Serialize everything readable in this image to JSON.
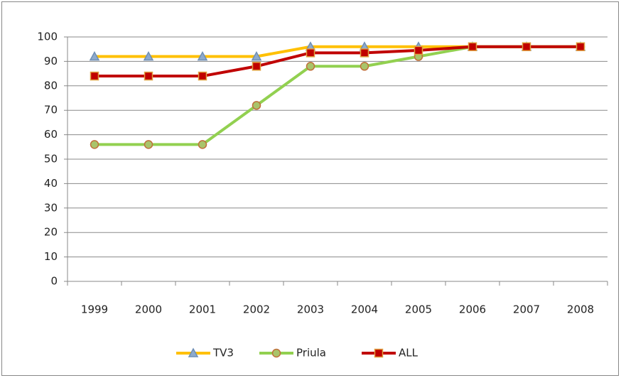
{
  "chart_data": {
    "type": "line",
    "categories": [
      "1999",
      "2000",
      "2001",
      "2002",
      "2003",
      "2004",
      "2005",
      "2006",
      "2007",
      "2008"
    ],
    "series": [
      {
        "name": "TV3",
        "color": "#ffc000",
        "marker": "triangle",
        "marker_fill": "#8eaacc",
        "marker_stroke": "#6f8fb5",
        "values": [
          92,
          92,
          92,
          92,
          96,
          96,
          96,
          96,
          96,
          96
        ]
      },
      {
        "name": "Priula",
        "color": "#92d050",
        "marker": "circle",
        "marker_fill": "#a9c46a",
        "marker_stroke": "#c0703a",
        "values": [
          56,
          56,
          56,
          72,
          88,
          88,
          92,
          96,
          96,
          96
        ]
      },
      {
        "name": "ALL",
        "color": "#c00000",
        "marker": "square",
        "marker_fill": "#c00000",
        "marker_stroke": "#e0a040",
        "values": [
          84,
          84,
          84,
          88,
          93.5,
          93.5,
          94.5,
          96,
          96,
          96
        ]
      }
    ],
    "ylim": [
      0,
      100
    ],
    "yticks": [
      0,
      10,
      20,
      30,
      40,
      50,
      60,
      70,
      80,
      90,
      100
    ],
    "grid": true,
    "legend": "bottom"
  }
}
